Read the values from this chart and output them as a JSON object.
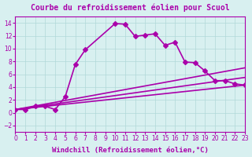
{
  "title": "Courbe du refroidissement éolien pour Scuol",
  "xlabel": "Windchill (Refroidissement éolien,°C)",
  "bg_color": "#d8f0f0",
  "grid_color": "#b0d8d8",
  "line_color": "#aa00aa",
  "xlim": [
    0,
    23
  ],
  "ylim": [
    -3,
    15
  ],
  "xticks": [
    0,
    1,
    2,
    3,
    4,
    5,
    6,
    7,
    8,
    9,
    10,
    11,
    12,
    13,
    14,
    15,
    16,
    17,
    18,
    19,
    20,
    21,
    22,
    23
  ],
  "yticks": [
    -2,
    0,
    2,
    4,
    6,
    8,
    10,
    12,
    14
  ],
  "line1_x": [
    0,
    1,
    2,
    3,
    4,
    5,
    6,
    7,
    10,
    11,
    12,
    13,
    14,
    15,
    16,
    17,
    18,
    19,
    20,
    21,
    22,
    23
  ],
  "line1_y": [
    0.5,
    0.5,
    1.0,
    1.0,
    0.5,
    2.5,
    7.5,
    9.8,
    13.9,
    13.8,
    11.9,
    12.1,
    12.3,
    10.5,
    11.0,
    7.9,
    7.8,
    6.5,
    5.0,
    5.0,
    4.5,
    4.3
  ],
  "line2_x": [
    0,
    23
  ],
  "line2_y": [
    0.5,
    4.3
  ],
  "line3_x": [
    0,
    23
  ],
  "line3_y": [
    0.5,
    7.0
  ],
  "line4_x": [
    0,
    23
  ],
  "line4_y": [
    0.5,
    5.5
  ],
  "marker": "D",
  "markersize": 3,
  "linewidth": 1.2,
  "title_fontsize": 7,
  "label_fontsize": 6.5,
  "tick_fontsize": 5.5
}
